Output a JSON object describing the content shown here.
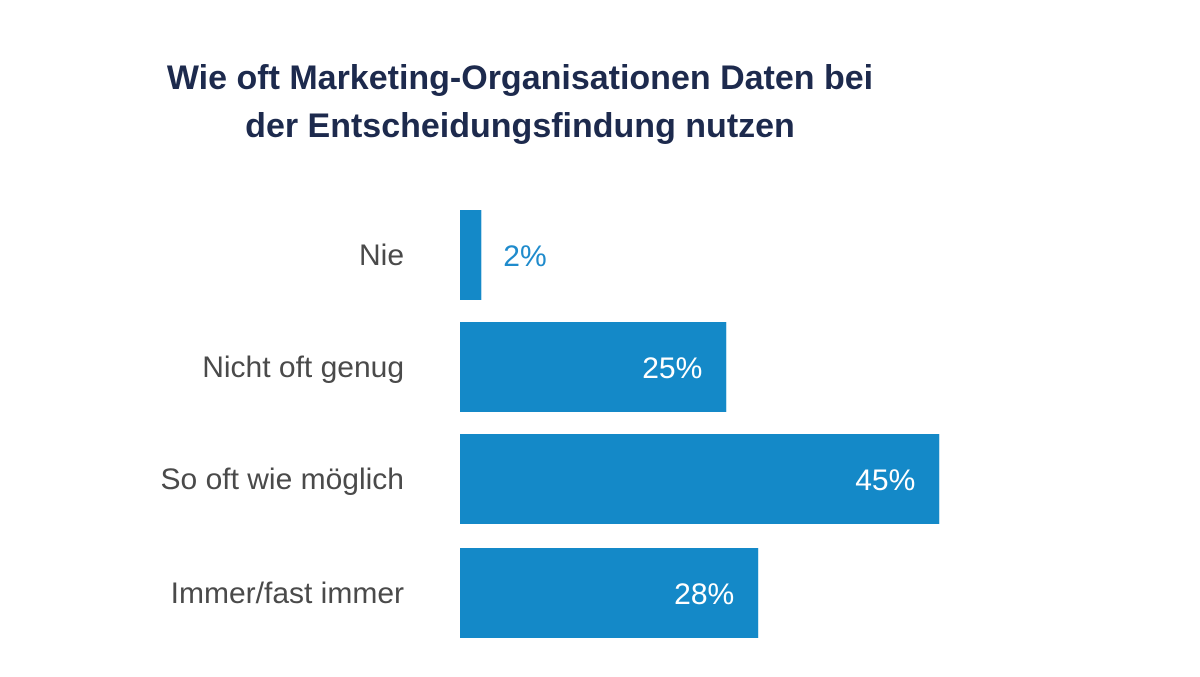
{
  "chart_data": {
    "type": "bar",
    "orientation": "horizontal",
    "title": "Wie oft Marketing-Organisationen Daten bei der Entscheidungsfindung nutzen",
    "title_lines": [
      "Wie oft Marketing-Organisationen Daten bei",
      "der Entscheidungsfindung nutzen"
    ],
    "categories": [
      "Nie",
      "Nicht oft genug",
      "So oft wie möglich",
      "Immer/fast immer"
    ],
    "values": [
      2,
      25,
      45,
      28
    ],
    "value_labels": [
      "2%",
      "25%",
      "45%",
      "28%"
    ],
    "unit": "%",
    "grid": false,
    "colors": {
      "bar": "#1489c8",
      "value_inside": "#ffffff",
      "value_outside": "#1f8bcc",
      "category_text": "#4a4a4a",
      "title_text": "#1d2a4d"
    }
  }
}
